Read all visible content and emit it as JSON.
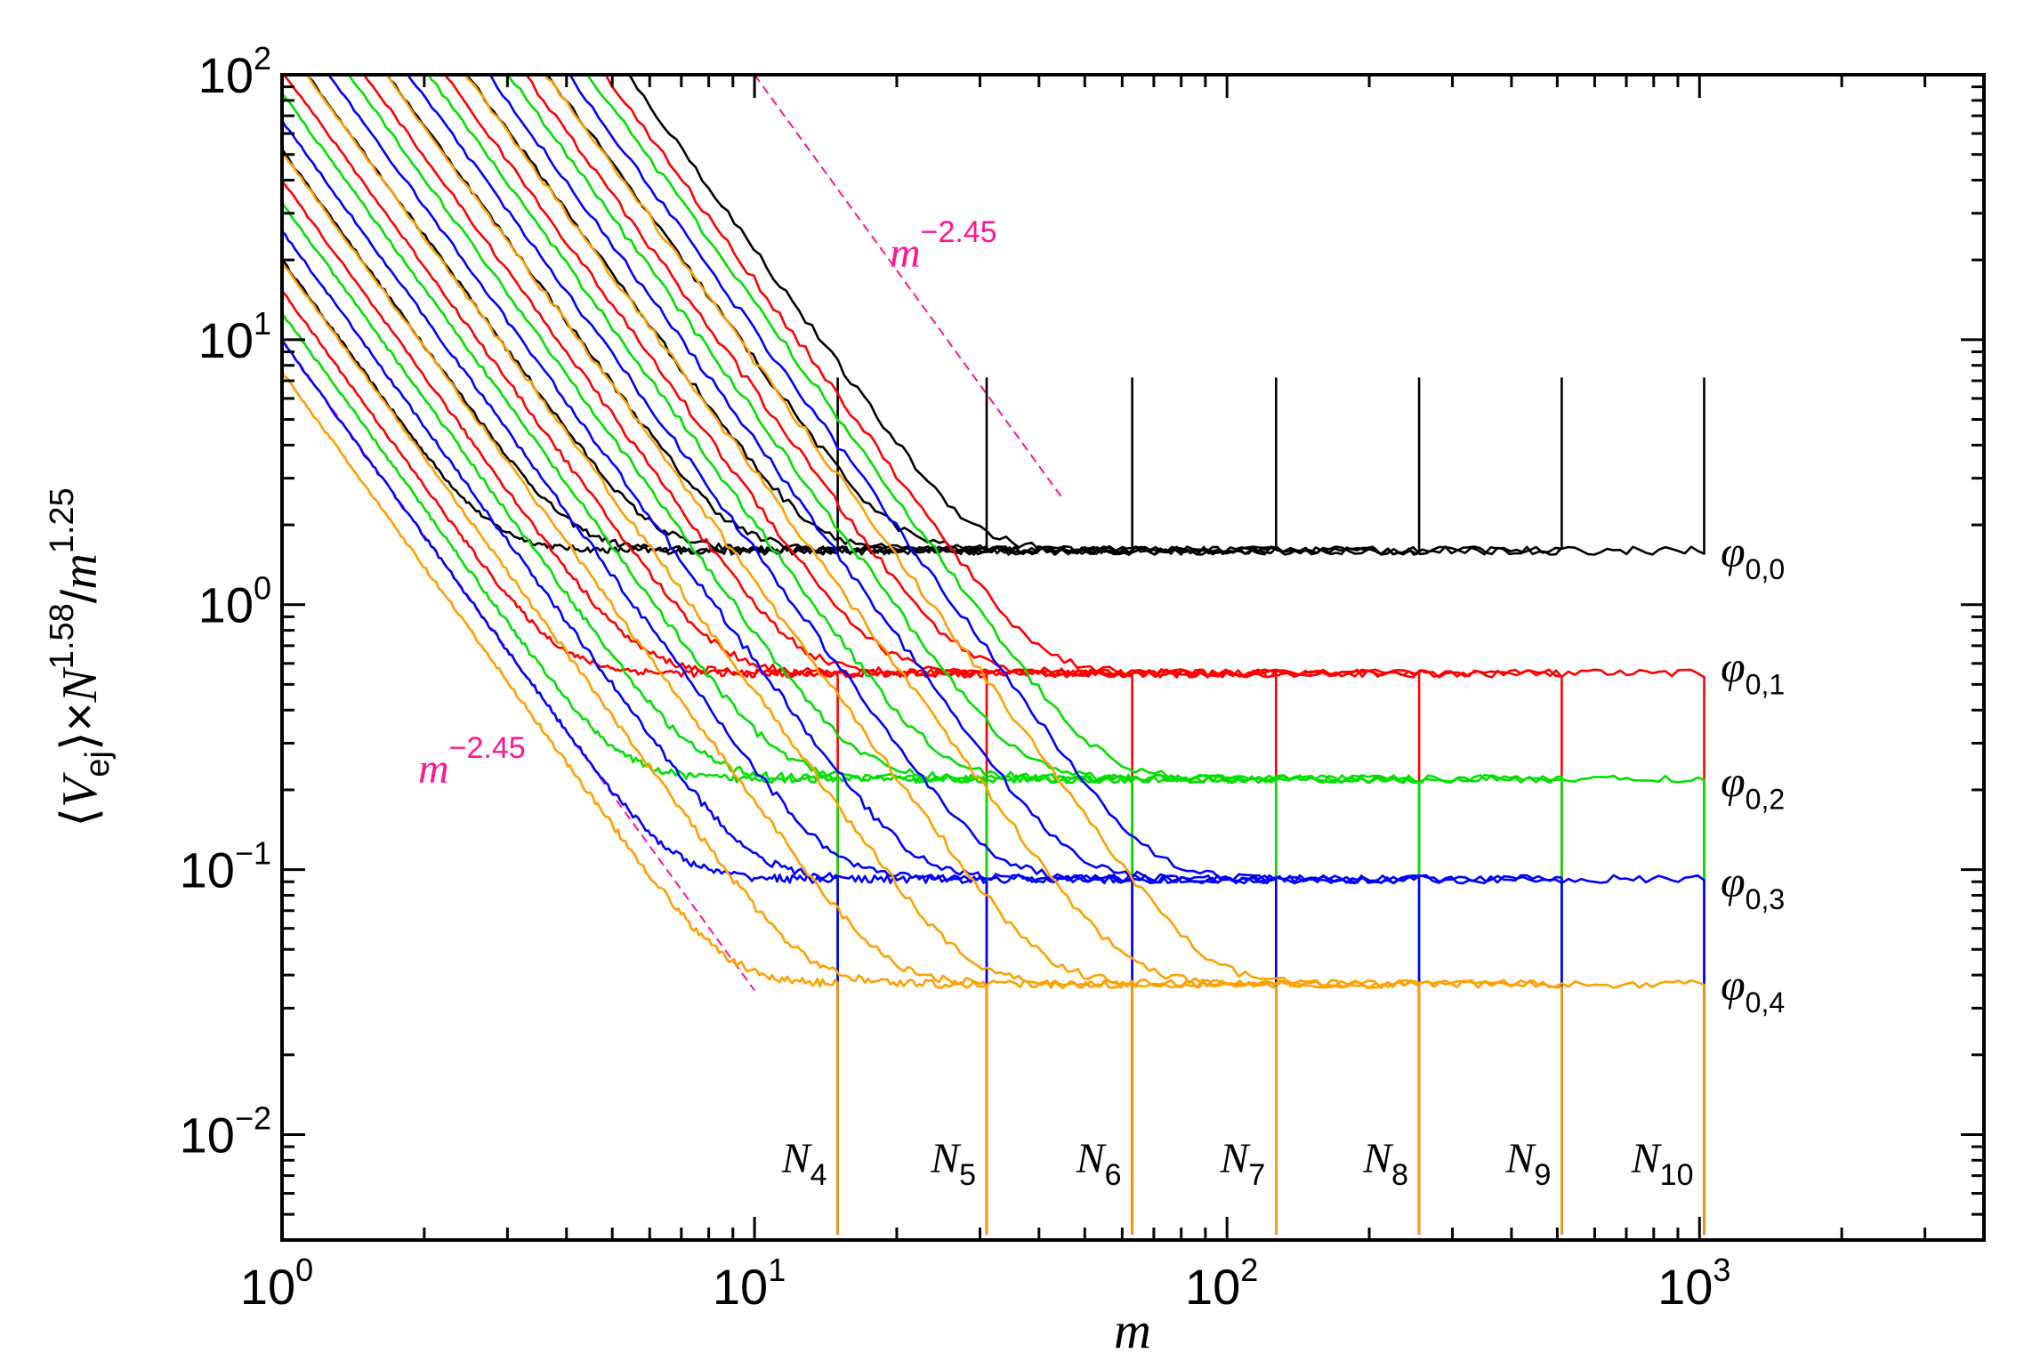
{
  "chart_data": {
    "type": "line",
    "xscale": "log",
    "yscale": "log",
    "xlim": [
      1,
      4000
    ],
    "ylim": [
      0.004,
      100
    ],
    "xlabel": "m",
    "ylabel": {
      "text_open": "⟨",
      "var": "V",
      "sub": "ej",
      "text_close": "⟩×",
      "var2": "N",
      "sup": "1.58",
      "slash": "/",
      "var3": "m",
      "sup2": "1.25"
    },
    "x_ticks": [
      {
        "value": 1,
        "base": "10",
        "exp": "0"
      },
      {
        "value": 10,
        "base": "10",
        "exp": "1"
      },
      {
        "value": 100,
        "base": "10",
        "exp": "2"
      },
      {
        "value": 1000,
        "base": "10",
        "exp": "3"
      }
    ],
    "y_ticks": [
      {
        "value": 0.01,
        "base": "10",
        "exp": "−2"
      },
      {
        "value": 0.1,
        "base": "10",
        "exp": "−1"
      },
      {
        "value": 1,
        "base": "10",
        "exp": "0"
      },
      {
        "value": 10,
        "base": "10",
        "exp": "1"
      },
      {
        "value": 100,
        "base": "10",
        "exp": "2"
      }
    ],
    "families": [
      {
        "name": "phi_0,0",
        "label_var": "φ",
        "label_sub": "0,0",
        "color": "#000000",
        "plateau": 1.6,
        "jump_end": "up",
        "label_y": 1.55
      },
      {
        "name": "phi_0,1",
        "label_var": "φ",
        "label_sub": "0,1",
        "color": "#ff0000",
        "plateau": 0.55,
        "jump_end": "down",
        "label_y": 0.57
      },
      {
        "name": "phi_0,2",
        "label_var": "φ",
        "label_sub": "0,2",
        "color": "#00e000",
        "plateau": 0.22,
        "jump_end": "down",
        "label_y": 0.21
      },
      {
        "name": "phi_0,3",
        "label_var": "φ",
        "label_sub": "0,3",
        "color": "#0000ff",
        "plateau": 0.092,
        "jump_end": "down",
        "label_y": 0.088
      },
      {
        "name": "phi_0,4",
        "label_var": "φ",
        "label_sub": "0,4",
        "color": "#ffa000",
        "plateau": 0.037,
        "jump_end": "down",
        "label_y": 0.036
      }
    ],
    "system_sizes": [
      {
        "name": "N4",
        "label_var": "N",
        "label_sub": "4",
        "m_max": 15
      },
      {
        "name": "N5",
        "label_var": "N",
        "label_sub": "5",
        "m_max": 31
      },
      {
        "name": "N6",
        "label_var": "N",
        "label_sub": "6",
        "m_max": 63
      },
      {
        "name": "N7",
        "label_var": "N",
        "label_sub": "7",
        "m_max": 127
      },
      {
        "name": "N8",
        "label_var": "N",
        "label_sub": "8",
        "m_max": 255
      },
      {
        "name": "N9",
        "label_var": "N",
        "label_sub": "9",
        "m_max": 511
      },
      {
        "name": "N10",
        "label_var": "N",
        "label_sub": "10",
        "m_max": 1023
      }
    ],
    "guide_lines": [
      {
        "label_var": "m",
        "label_sup": "−2.45",
        "slope": -2.45,
        "color": "#ff1493",
        "x_from": 1,
        "y_from": 10,
        "x_to": 10,
        "y_to": 0.035
      },
      {
        "label_var": "m",
        "label_sup": "−2.45",
        "slope": -2.45,
        "color": "#ff1493",
        "x_from": 10,
        "y_from": 100,
        "x_to": 45,
        "y_to": 2.5
      }
    ]
  }
}
